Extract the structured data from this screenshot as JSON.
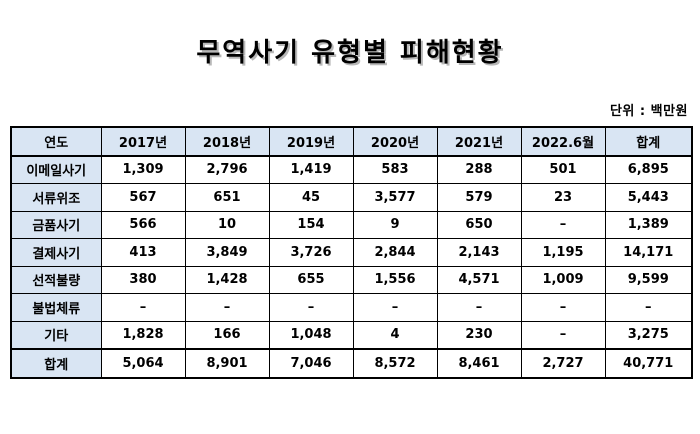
{
  "title": "무역사기 유형별 피해현황",
  "unit": "단위 : 백만원",
  "table": {
    "columns": [
      "연도",
      "2017년",
      "2018년",
      "2019년",
      "2020년",
      "2021년",
      "2022.6월",
      "합계"
    ],
    "rows": [
      {
        "label": "이메일사기",
        "values": [
          "1,309",
          "2,796",
          "1,419",
          "583",
          "288",
          "501",
          "6,895"
        ]
      },
      {
        "label": "서류위조",
        "values": [
          "567",
          "651",
          "45",
          "3,577",
          "579",
          "23",
          "5,443"
        ]
      },
      {
        "label": "금품사기",
        "values": [
          "566",
          "10",
          "154",
          "9",
          "650",
          "–",
          "1,389"
        ]
      },
      {
        "label": "결제사기",
        "values": [
          "413",
          "3,849",
          "3,726",
          "2,844",
          "2,143",
          "1,195",
          "14,171"
        ]
      },
      {
        "label": "선적불량",
        "values": [
          "380",
          "1,428",
          "655",
          "1,556",
          "4,571",
          "1,009",
          "9,599"
        ]
      },
      {
        "label": "불법체류",
        "values": [
          "–",
          "–",
          "–",
          "–",
          "–",
          "–",
          "–"
        ]
      },
      {
        "label": "기타",
        "values": [
          "1,828",
          "166",
          "1,048",
          "4",
          "230",
          "–",
          "3,275"
        ]
      },
      {
        "label": "합계",
        "values": [
          "5,064",
          "8,901",
          "7,046",
          "8,572",
          "8,461",
          "2,727",
          "40,771"
        ]
      }
    ]
  }
}
